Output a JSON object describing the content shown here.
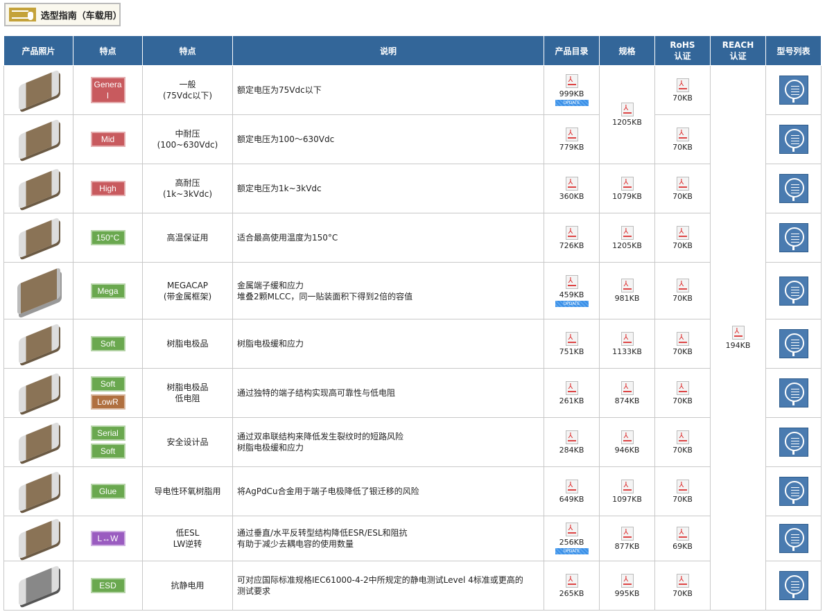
{
  "guide": {
    "title": "选型指南（车载用）",
    "icon": "selection-guide-hand-icon"
  },
  "headers": [
    "产品照片",
    "特点",
    "特点",
    "说明",
    "产品目录",
    "规格",
    "RoHS\n认证",
    "REACH\n认证",
    "型号列表"
  ],
  "colors": {
    "header": "#336699",
    "red": "#c85a5e",
    "green": "#6aa84f",
    "brown": "#b07040",
    "purple": "#9a5cc0"
  },
  "reach": {
    "size": "194KB"
  },
  "rows": [
    {
      "chip": "",
      "badges": [
        {
          "t": "Genera l",
          "c": "red"
        }
      ],
      "feature": [
        "一般",
        "(75Vdc以下)"
      ],
      "desc": [
        "额定电压为75Vdc以下"
      ],
      "catalog": "999KB",
      "update": "UPDATE",
      "spec": "1205KB",
      "spec_rowspan": 2,
      "rohs": "70KB"
    },
    {
      "chip": "",
      "badges": [
        {
          "t": "Mid",
          "c": "red"
        }
      ],
      "feature": [
        "中耐压",
        "(100~630Vdc)"
      ],
      "desc": [
        "额定电压为100～630Vdc"
      ],
      "catalog": "779KB",
      "rohs": "70KB"
    },
    {
      "chip": "",
      "badges": [
        {
          "t": "High",
          "c": "red"
        }
      ],
      "feature": [
        "高耐压",
        "(1k~3kVdc)"
      ],
      "desc": [
        "额定电压为1k~3kVdc"
      ],
      "catalog": "360KB",
      "spec": "1079KB",
      "rohs": "70KB"
    },
    {
      "chip": "",
      "badges": [
        {
          "t": "150°C",
          "c": "green"
        }
      ],
      "feature": [
        "高温保证用"
      ],
      "desc": [
        "适合最高使用温度为150°C"
      ],
      "catalog": "726KB",
      "spec": "1205KB",
      "rohs": "70KB"
    },
    {
      "chip": "big",
      "badges": [
        {
          "t": "Mega",
          "c": "green"
        }
      ],
      "feature": [
        "MEGACAP",
        "(带金属框架)"
      ],
      "desc": [
        "金属端子缓和应力",
        "堆叠2颗MLCC，同一贴装面积下得到2倍的容值"
      ],
      "catalog": "459KB",
      "update": "UPDATE",
      "spec": "981KB",
      "rohs": "70KB"
    },
    {
      "chip": "",
      "badges": [
        {
          "t": "Soft",
          "c": "green"
        }
      ],
      "feature": [
        "树脂电极品"
      ],
      "desc": [
        "树脂电极缓和应力"
      ],
      "catalog": "751KB",
      "spec": "1133KB",
      "rohs": "70KB"
    },
    {
      "chip": "",
      "badges": [
        {
          "t": "Soft",
          "c": "green"
        },
        {
          "t": "LowR",
          "c": "brown"
        }
      ],
      "feature": [
        "树脂电极品",
        "低电阻"
      ],
      "desc": [
        "通过独特的端子结构实现高可靠性与低电阻"
      ],
      "catalog": "261KB",
      "spec": "874KB",
      "rohs": "70KB"
    },
    {
      "chip": "",
      "badges": [
        {
          "t": "Serial",
          "c": "green"
        },
        {
          "t": "Soft",
          "c": "green"
        }
      ],
      "feature": [
        "安全设计品"
      ],
      "desc": [
        "通过双串联结构来降低发生裂纹时的短路风险",
        "树脂电极缓和应力"
      ],
      "catalog": "284KB",
      "spec": "946KB",
      "rohs": "70KB"
    },
    {
      "chip": "",
      "badges": [
        {
          "t": "Glue",
          "c": "green"
        }
      ],
      "feature": [
        "导电性环氧树脂用"
      ],
      "desc": [
        "将AgPdCu合金用于端子电极降低了银迁移的风险"
      ],
      "catalog": "649KB",
      "spec": "1097KB",
      "rohs": "70KB"
    },
    {
      "chip": "",
      "badges": [
        {
          "t": "L↔W",
          "c": "purple"
        }
      ],
      "feature": [
        "低ESL",
        "LW逆转"
      ],
      "desc": [
        "通过垂直/水平反转型结构降低ESR/ESL和阻抗",
        "有助于减少去耦电容的使用数量"
      ],
      "catalog": "256KB",
      "update": "UPDATE",
      "spec": "877KB",
      "rohs": "69KB"
    },
    {
      "chip": "grey",
      "badges": [
        {
          "t": "ESD",
          "c": "green"
        }
      ],
      "feature": [
        "抗静电用"
      ],
      "desc": [
        "可对应国际标准规格IEC61000-4-2中所规定的静电测试Level 4标准或更高的",
        "测试要求"
      ],
      "catalog": "265KB",
      "spec": "995KB",
      "rohs": "70KB"
    }
  ]
}
